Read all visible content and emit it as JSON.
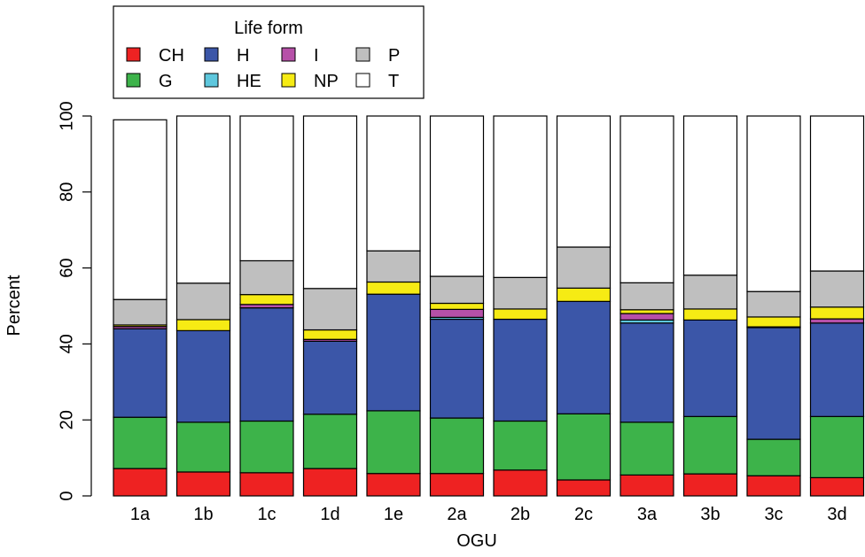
{
  "chart_data": {
    "type": "bar",
    "stacked": true,
    "xlabel": "OGU",
    "ylabel": "Percent",
    "ylim": [
      0,
      100
    ],
    "yticks": [
      0,
      20,
      40,
      60,
      80,
      100
    ],
    "categories": [
      "1a",
      "1b",
      "1c",
      "1d",
      "1e",
      "2a",
      "2b",
      "2c",
      "3a",
      "3b",
      "3c",
      "3d"
    ],
    "legend": {
      "title": "Life form",
      "position": "top-left",
      "entries": [
        "CH",
        "H",
        "I",
        "P",
        "G",
        "HE",
        "NP",
        "T"
      ]
    },
    "series": [
      {
        "name": "CH",
        "color": "#ee2222",
        "values": [
          7.2,
          6.3,
          6.1,
          7.2,
          5.9,
          5.9,
          6.8,
          4.2,
          5.5,
          5.8,
          5.3,
          4.8
        ]
      },
      {
        "name": "G",
        "color": "#3db34a",
        "values": [
          13.5,
          13.1,
          13.6,
          14.3,
          16.5,
          14.6,
          12.9,
          17.4,
          13.9,
          15.1,
          9.6,
          16.1
        ]
      },
      {
        "name": "H",
        "color": "#3b56a8",
        "values": [
          23.3,
          24.1,
          29.8,
          19.2,
          30.7,
          26.0,
          26.8,
          29.6,
          26.1,
          25.4,
          29.4,
          24.6
        ]
      },
      {
        "name": "HE",
        "color": "#5ec7dd",
        "values": [
          0.0,
          0.0,
          0.0,
          0.0,
          0.0,
          0.5,
          0.0,
          0.0,
          0.8,
          0.0,
          0.0,
          0.0
        ]
      },
      {
        "name": "I",
        "color": "#b650a8",
        "values": [
          0.6,
          0.0,
          0.9,
          0.5,
          0.0,
          2.1,
          0.0,
          0.0,
          1.7,
          0.0,
          0.2,
          1.1
        ]
      },
      {
        "name": "NP",
        "color": "#f6eb14",
        "values": [
          0.4,
          2.9,
          2.6,
          2.5,
          3.2,
          1.6,
          2.7,
          3.5,
          1.0,
          2.9,
          2.6,
          3.1
        ]
      },
      {
        "name": "P",
        "color": "#bfbfbf",
        "values": [
          6.7,
          9.6,
          8.9,
          10.9,
          8.2,
          7.1,
          8.3,
          10.8,
          7.1,
          8.9,
          6.7,
          9.5
        ]
      },
      {
        "name": "T",
        "color": "#ffffff",
        "values": [
          47.3,
          44.0,
          38.1,
          45.4,
          35.5,
          42.2,
          42.5,
          34.5,
          43.9,
          41.9,
          46.2,
          40.8
        ]
      }
    ]
  }
}
